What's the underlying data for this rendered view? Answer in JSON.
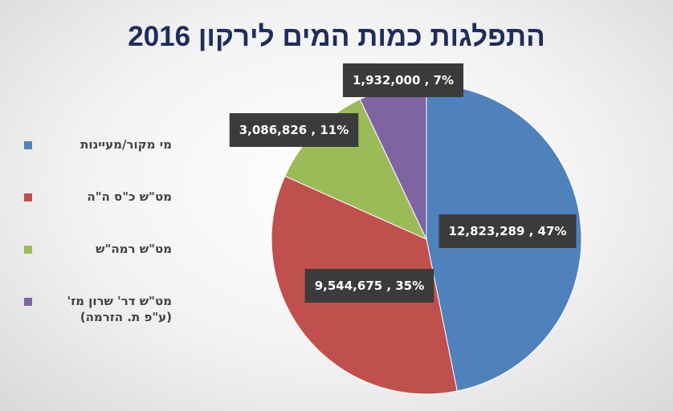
{
  "chart_data": {
    "type": "pie",
    "title": "התפלגות כמות המים לירקון 2016",
    "categories": [
      "מי מקור/מעיינות",
      "מט\"ש כ\"ס ה\"ה",
      "מט\"ש רמה\"ש",
      "מט\"ש דר' שרון מז' (ע\"פ ת. הזרמה)"
    ],
    "values": [
      12823289,
      9544675,
      3086826,
      1932000
    ],
    "value_labels": [
      "12,823,289 , 47%",
      "9,544,675 , 35%",
      "3,086,826 , 11%",
      "1,932,000 , 7%"
    ],
    "colors": [
      "#4f81bd",
      "#c0504d",
      "#9bbb59",
      "#8064a2"
    ],
    "legend": "left"
  }
}
